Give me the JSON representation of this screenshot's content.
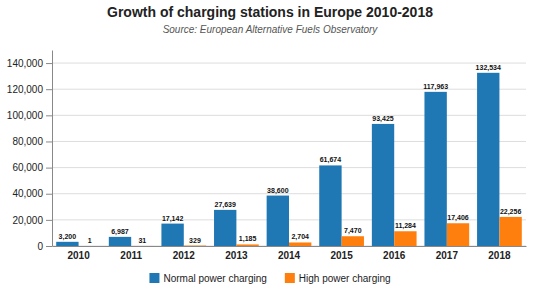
{
  "chart_data": {
    "type": "bar",
    "title": "Growth of charging stations in Europe 2010-2018",
    "subtitle": "Source: European Alternative Fuels Observatory",
    "categories": [
      "2010",
      "2011",
      "2012",
      "2013",
      "2014",
      "2015",
      "2016",
      "2017",
      "2018"
    ],
    "series": [
      {
        "name": "Normal power charging",
        "values": [
          3200,
          6987,
          17142,
          27639,
          38600,
          61674,
          93425,
          117963,
          132534
        ],
        "value_labels": [
          "3,200",
          "6,987",
          "17,142",
          "27,639",
          "38,600",
          "61,674",
          "93,425",
          "117,963",
          "132,534"
        ]
      },
      {
        "name": "High power charging",
        "values": [
          1,
          31,
          329,
          1185,
          2704,
          7470,
          11284,
          17406,
          22256
        ],
        "value_labels": [
          "1",
          "31",
          "329",
          "1,185",
          "2,704",
          "7,470",
          "11,284",
          "17,406",
          "22,256"
        ]
      }
    ],
    "ylim": [
      0,
      150000
    ],
    "yticks": [
      0,
      {
        "value": 20000,
        "label": "20,000"
      },
      {
        "value": 40000,
        "label": "40,000"
      },
      {
        "value": 60000,
        "label": "60,000"
      },
      {
        "value": 80000,
        "label": "80,000"
      },
      {
        "value": 100000,
        "label": "100,000"
      },
      {
        "value": 120000,
        "label": "120,000"
      },
      {
        "value": 140000,
        "label": "140,000"
      }
    ],
    "grid": true,
    "data_labels": true,
    "legend": "bottom"
  }
}
